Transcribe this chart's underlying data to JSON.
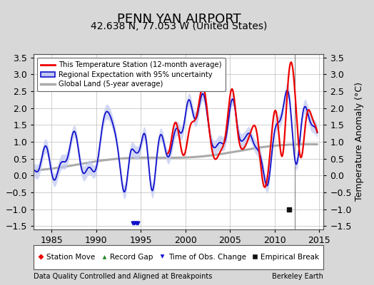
{
  "title": "PENN YAN AIRPORT",
  "subtitle": "42.638 N, 77.053 W (United States)",
  "ylabel": "Temperature Anomaly (°C)",
  "xlabel_left": "Data Quality Controlled and Aligned at Breakpoints",
  "xlabel_right": "Berkeley Earth",
  "xlim": [
    1983.0,
    2015.5
  ],
  "ylim": [
    -1.6,
    3.6
  ],
  "yticks": [
    -1.5,
    -1.0,
    -0.5,
    0.0,
    0.5,
    1.0,
    1.5,
    2.0,
    2.5,
    3.0,
    3.5
  ],
  "xticks": [
    1985,
    1990,
    1995,
    2000,
    2005,
    2010,
    2015
  ],
  "bg_color": "#d8d8d8",
  "plot_bg_color": "#ffffff",
  "grid_color": "#bbbbbb",
  "red_line_color": "#ee0000",
  "blue_line_color": "#1111cc",
  "blue_fill_color": "#c0c8f0",
  "gray_line_color": "#aaaaaa",
  "vertical_line_color": "#777777",
  "vertical_line_x": 2012.3,
  "empirical_break_x": 2011.6,
  "empirical_break_y": -1.0,
  "title_fontsize": 13,
  "subtitle_fontsize": 10,
  "tick_fontsize": 9,
  "ylabel_fontsize": 9
}
